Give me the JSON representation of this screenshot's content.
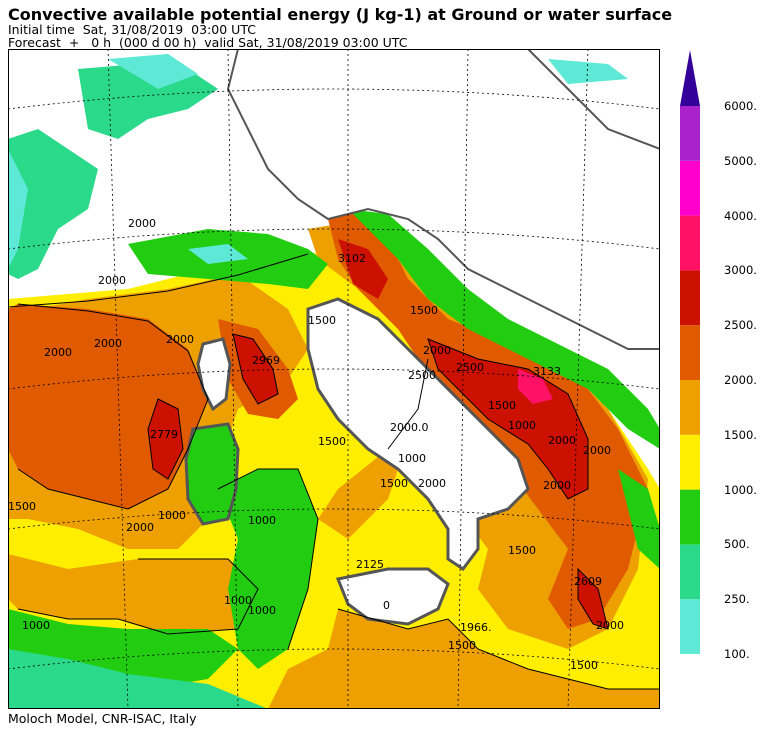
{
  "header": {
    "title": "Convective available potential energy (J kg-1) at Ground or water surface",
    "initial_time": "Initial time  Sat, 31/08/2019  03:00 UTC",
    "forecast": "Forecast  +   0 h  (000 d 00 h)  valid Sat, 31/08/2019 03:00 UTC"
  },
  "footer": "Moloch Model, CNR-ISAC, Italy",
  "legend": {
    "levels": [
      {
        "label": "100.",
        "color": "#5ee8d6"
      },
      {
        "label": "250.",
        "color": "#2ad98a"
      },
      {
        "label": "500.",
        "color": "#22cc11"
      },
      {
        "label": "1000.",
        "color": "#ffee00"
      },
      {
        "label": "1500.",
        "color": "#eea000"
      },
      {
        "label": "2000.",
        "color": "#e05a00"
      },
      {
        "label": "2500.",
        "color": "#cc1100"
      },
      {
        "label": "3000.",
        "color": "#ff1166"
      },
      {
        "label": "4000.",
        "color": "#ff00cc"
      },
      {
        "label": "5000.",
        "color": "#aa22cc"
      },
      {
        "label": "6000.",
        "color": "#7711cc"
      }
    ],
    "arrow_color": "#330099"
  },
  "map": {
    "contour_labels": [
      "2000",
      "2000",
      "2000",
      "2969",
      "2779",
      "2000",
      "1500",
      "1000",
      "1500",
      "2000",
      "2000",
      "2500",
      "3133",
      "2000",
      "2000",
      "1500",
      "2609",
      "2000",
      "1500",
      "2125",
      "1966.",
      "1000",
      "1000",
      "1000",
      "1500",
      "2000",
      "1500",
      "1000",
      "2000",
      "3102",
      "1500",
      "2500",
      "1500",
      "1000",
      "2000.0",
      "2000",
      "0",
      "1000",
      "1500"
    ]
  }
}
